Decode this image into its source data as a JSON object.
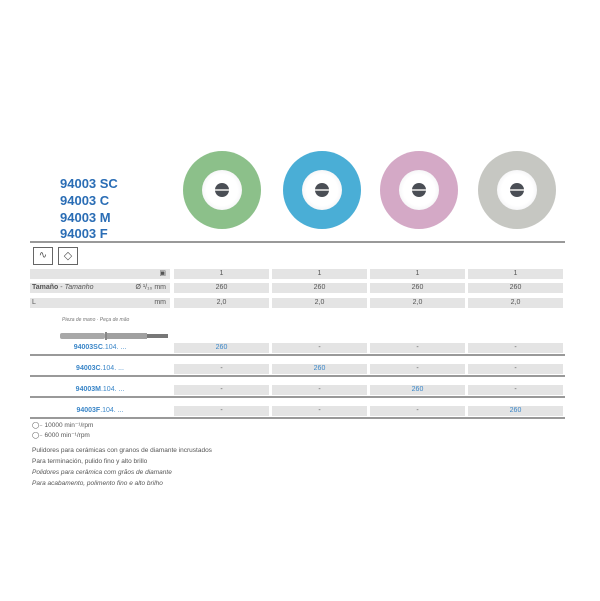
{
  "codes": [
    "94003 SC",
    "94003 C",
    "94003 M",
    "94003 F"
  ],
  "disc_colors": [
    "#8cc08a",
    "#4aaed6",
    "#d4a9c6",
    "#c6c7c2"
  ],
  "icons": [
    "flame-polishing-icon",
    "diamond-icon"
  ],
  "table": {
    "pack_icon": "pack-icon",
    "pack_values": [
      "1",
      "1",
      "1",
      "1"
    ],
    "size_label": "Tamaño",
    "size_label_pt": "Tamanho",
    "size_unit": "Ø ¹/₁₀ mm",
    "size_values": [
      "260",
      "260",
      "260",
      "260"
    ],
    "l_label": "L",
    "l_unit": "mm",
    "l_values": [
      "2,0",
      "2,0",
      "2,0",
      "2,0"
    ]
  },
  "handpiece_label": "Pieza de mano · Peça de mão",
  "order_rows": [
    {
      "code": "94003SC",
      "suffix": ".104. ...",
      "values": [
        "260",
        "-",
        "-",
        "-"
      ]
    },
    {
      "code": "94003C",
      "suffix": ".104. ...",
      "values": [
        "-",
        "260",
        "-",
        "-"
      ]
    },
    {
      "code": "94003M",
      "suffix": ".104. ...",
      "values": [
        "-",
        "-",
        "260",
        "-"
      ]
    },
    {
      "code": "94003F",
      "suffix": ".104. ...",
      "values": [
        "-",
        "-",
        "-",
        "260"
      ]
    }
  ],
  "speeds": [
    "10000 min⁻¹/rpm",
    "6000 min⁻¹/rpm"
  ],
  "descriptions": [
    "Pulidores para cerámicas con granos de diamante incrustados",
    "Para terminación, pulido fino y alto brillo",
    "Polidores para cerâmica com grãos de diamante",
    "Para acabamento, polimento fino e alto brilho"
  ]
}
